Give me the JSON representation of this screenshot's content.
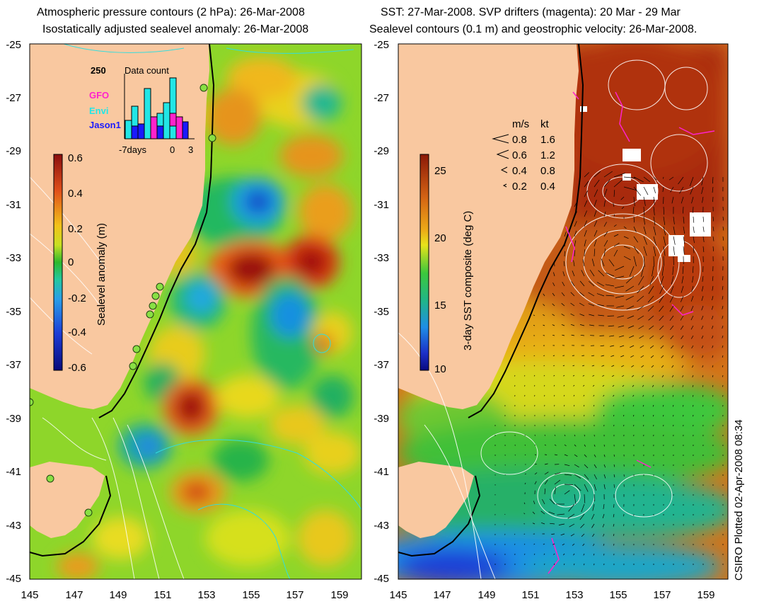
{
  "left_panel": {
    "title_line1": "Atmospheric pressure contours (2 hPa): 26-Mar-2008",
    "title_line2": "Isostatically adjusted sealevel anomaly: 26-Mar-2008",
    "colorbar": {
      "label": "Sealevel anomaly (m)",
      "ticks": [
        "0.6",
        "0.4",
        "0.2",
        "0",
        "-0.2",
        "-0.4",
        "-0.6"
      ],
      "range": [
        -0.6,
        0.6
      ]
    },
    "inset": {
      "title": "Data count",
      "y_max_label": "250",
      "x_labels": [
        "-7days",
        "0",
        "3"
      ],
      "legend": [
        {
          "name": "GFO",
          "color": "#ff22cc"
        },
        {
          "name": "Envi",
          "color": "#22e6e6"
        },
        {
          "name": "Jason1",
          "color": "#1a1aff"
        }
      ]
    }
  },
  "right_panel": {
    "title_line1": "SST: 27-Mar-2008. SVP drifters (magenta): 20 Mar - 29 Mar",
    "title_line2": "Sealevel contours (0.1 m) and geostrophic velocity: 26-Mar-2008.",
    "colorbar": {
      "label": "3-day SST composite (deg C)",
      "ticks": [
        "25",
        "20",
        "15",
        "10"
      ],
      "range": [
        10,
        26
      ]
    },
    "velocity_key": {
      "header_ms": "m/s",
      "header_kt": "kt",
      "rows": [
        {
          "ms": "0.8",
          "kt": "1.6"
        },
        {
          "ms": "0.6",
          "kt": "1.2"
        },
        {
          "ms": "0.4",
          "kt": "0.8"
        },
        {
          "ms": "0.2",
          "kt": "0.4"
        }
      ]
    }
  },
  "axes": {
    "lat_ticks": [
      "-25",
      "-27",
      "-29",
      "-31",
      "-33",
      "-35",
      "-37",
      "-39",
      "-41",
      "-43",
      "-45"
    ],
    "lon_ticks": [
      "145",
      "147",
      "149",
      "151",
      "153",
      "155",
      "157",
      "159"
    ]
  },
  "credit": "CSIRO Plotted 02-Apr-2008 08:34",
  "colors": {
    "land": "#f9c8a0",
    "coast": "#000000",
    "drifter": "#ff22cc",
    "pressure_contour": "#33dddd"
  }
}
